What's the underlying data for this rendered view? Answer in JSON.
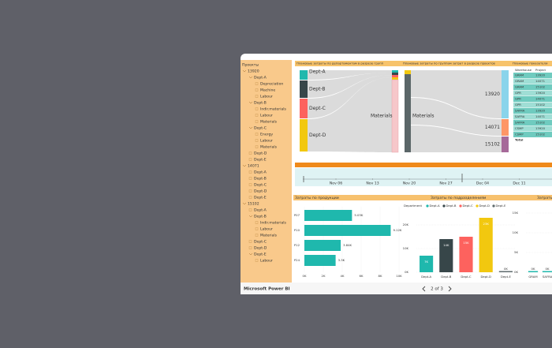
{
  "app": {
    "name": "Microsoft Power BI",
    "page_label": "2 of 3"
  },
  "slicer": {
    "title": "Проекты",
    "items": [
      {
        "label": "13920",
        "children": [
          {
            "label": "Dept-A",
            "children": [
              {
                "label": "Depreciation"
              },
              {
                "label": "Machine"
              },
              {
                "label": "Labour"
              }
            ]
          },
          {
            "label": "Dept-B",
            "children": [
              {
                "label": "Indir.materials"
              },
              {
                "label": "Labour"
              },
              {
                "label": "Materials"
              }
            ]
          },
          {
            "label": "Dept-C",
            "children": [
              {
                "label": "Energy"
              },
              {
                "label": "Labour"
              },
              {
                "label": "Materials"
              }
            ]
          },
          {
            "label": "Dept-D"
          },
          {
            "label": "Dept-E"
          }
        ]
      },
      {
        "label": "14071",
        "children": [
          {
            "label": "Dept-A"
          },
          {
            "label": "Dept-B"
          },
          {
            "label": "Dept-C"
          },
          {
            "label": "Dept-D"
          },
          {
            "label": "Dept-E"
          }
        ]
      },
      {
        "label": "15102",
        "children": [
          {
            "label": "Dept-A"
          },
          {
            "label": "Dept-B",
            "children": [
              {
                "label": "Indir.materials"
              },
              {
                "label": "Labour"
              },
              {
                "label": "Materials"
              }
            ]
          },
          {
            "label": "Dept-C"
          },
          {
            "label": "Dept-D"
          },
          {
            "label": "Dept-E",
            "children": [
              {
                "label": "Labour"
              }
            ]
          }
        ]
      }
    ]
  },
  "headers": [
    "Плановые затраты по департаментам в разрезе групп",
    "Плановые затраты по группам затрат в разрезе проектов",
    "Плановые показатели"
  ],
  "sankey_left": {
    "nodes": [
      "Dept-A",
      "Dept-B",
      "Dept-C",
      "Dept-D"
    ],
    "colors": [
      "#1fb8ad",
      "#374649",
      "#fd625e",
      "#f2c80f"
    ],
    "target": "Materials"
  },
  "sankey_right": {
    "source": "Materials",
    "targets": [
      "13920",
      "14071",
      "15102"
    ],
    "colors": [
      "#8ad4eb",
      "#fe9666",
      "#a66999"
    ]
  },
  "table": {
    "columns": [
      "Warehouse",
      "Project"
    ],
    "rows": [
      [
        "GRAM",
        "13920"
      ],
      [
        "GRAM",
        "14071"
      ],
      [
        "GRAM",
        "15102"
      ],
      [
        "GPR",
        "13920"
      ],
      [
        "GPR",
        "14071"
      ],
      [
        "GPR",
        "15102"
      ],
      [
        "SAFRA",
        "13920"
      ],
      [
        "SAFRA",
        "14071"
      ],
      [
        "SAFRA",
        "15102"
      ],
      [
        "CSMP",
        "13920"
      ],
      [
        "CSMP",
        "15102"
      ]
    ],
    "total": "Total"
  },
  "timeline": {
    "dates": [
      "Nov 06",
      "Nov 13",
      "Nov 20",
      "Nov 27",
      "Dec 04",
      "Dec 11"
    ]
  },
  "charts": [
    {
      "type": "hbar",
      "title": "Затраты по продукции",
      "categories": [
        "P07",
        "P10",
        "P12",
        "P24"
      ],
      "values": [
        5030,
        9120,
        3840,
        3300
      ],
      "value_labels": [
        "5.03K",
        "9.12K",
        "3.84K",
        "3.3K"
      ],
      "color": "#1fb8ad",
      "xlim": [
        0,
        10000
      ],
      "xticks": [
        {
          "value": 0,
          "label": "0K"
        },
        {
          "value": 2000,
          "label": "2K"
        },
        {
          "value": 4000,
          "label": "4K"
        },
        {
          "value": 6000,
          "label": "6K"
        },
        {
          "value": 8000,
          "label": "8K"
        },
        {
          "value": 10000,
          "label": "10K"
        }
      ]
    },
    {
      "type": "column",
      "title": "Затраты по подразделениям",
      "legend_title": "Department",
      "categories": [
        "Dept-A",
        "Dept-B",
        "Dept-C",
        "Dept-D",
        "Dept-E"
      ],
      "values": [
        7000,
        14000,
        15000,
        23000,
        500
      ],
      "value_labels": [
        "7K",
        "14K",
        "15K",
        "23K",
        "0K"
      ],
      "colors": [
        "#1fb8ad",
        "#374649",
        "#fd625e",
        "#f2c80f",
        "#5f6b6d"
      ],
      "ylim": [
        0,
        25000
      ],
      "yticks": [
        {
          "value": 0,
          "label": "0K"
        },
        {
          "value": 10000,
          "label": "10K"
        },
        {
          "value": 20000,
          "label": "20K"
        }
      ]
    },
    {
      "type": "column",
      "title": "Затраты",
      "categories": [
        "GRAM",
        "SAFRA"
      ],
      "values": [
        300,
        300
      ],
      "value_labels": [
        "0K",
        "0K"
      ],
      "colors": [
        "#1fb8ad",
        "#1fb8ad"
      ],
      "ylim": [
        0,
        15000
      ],
      "yticks": [
        {
          "value": 0,
          "label": "0K"
        },
        {
          "value": 5000,
          "label": "5K"
        },
        {
          "value": 10000,
          "label": "10K"
        },
        {
          "value": 15000,
          "label": "15K"
        }
      ]
    }
  ]
}
